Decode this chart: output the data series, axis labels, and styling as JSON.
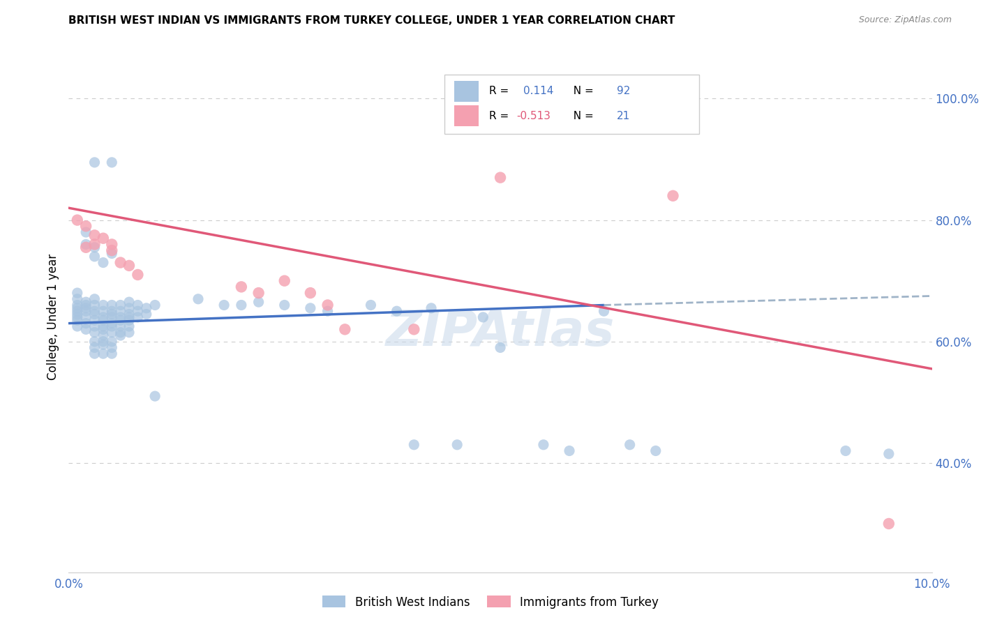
{
  "title": "BRITISH WEST INDIAN VS IMMIGRANTS FROM TURKEY COLLEGE, UNDER 1 YEAR CORRELATION CHART",
  "source": "Source: ZipAtlas.com",
  "ylabel": "College, Under 1 year",
  "xlim": [
    0.0,
    0.1
  ],
  "ylim": [
    0.22,
    1.06
  ],
  "blue_color": "#a8c4e0",
  "pink_color": "#f4a0b0",
  "blue_line_color": "#4472c4",
  "pink_line_color": "#e05878",
  "dashed_line_color": "#a0b4c8",
  "grid_color": "#cccccc",
  "right_tick_color": "#4472c4",
  "x_tick_color": "#4472c4",
  "blue_scatter": [
    [
      0.001,
      0.66
    ],
    [
      0.001,
      0.65
    ],
    [
      0.001,
      0.64
    ],
    [
      0.001,
      0.67
    ],
    [
      0.001,
      0.635
    ],
    [
      0.001,
      0.655
    ],
    [
      0.001,
      0.625
    ],
    [
      0.001,
      0.68
    ],
    [
      0.001,
      0.645
    ],
    [
      0.002,
      0.66
    ],
    [
      0.002,
      0.64
    ],
    [
      0.002,
      0.655
    ],
    [
      0.002,
      0.63
    ],
    [
      0.002,
      0.62
    ],
    [
      0.002,
      0.665
    ],
    [
      0.002,
      0.65
    ],
    [
      0.003,
      0.67
    ],
    [
      0.003,
      0.66
    ],
    [
      0.003,
      0.65
    ],
    [
      0.003,
      0.645
    ],
    [
      0.003,
      0.635
    ],
    [
      0.003,
      0.625
    ],
    [
      0.003,
      0.615
    ],
    [
      0.003,
      0.6
    ],
    [
      0.003,
      0.59
    ],
    [
      0.003,
      0.58
    ],
    [
      0.004,
      0.66
    ],
    [
      0.004,
      0.65
    ],
    [
      0.004,
      0.64
    ],
    [
      0.004,
      0.635
    ],
    [
      0.004,
      0.625
    ],
    [
      0.004,
      0.62
    ],
    [
      0.004,
      0.61
    ],
    [
      0.004,
      0.6
    ],
    [
      0.004,
      0.595
    ],
    [
      0.004,
      0.58
    ],
    [
      0.005,
      0.66
    ],
    [
      0.005,
      0.65
    ],
    [
      0.005,
      0.645
    ],
    [
      0.005,
      0.64
    ],
    [
      0.005,
      0.63
    ],
    [
      0.005,
      0.625
    ],
    [
      0.005,
      0.615
    ],
    [
      0.005,
      0.6
    ],
    [
      0.005,
      0.59
    ],
    [
      0.005,
      0.58
    ],
    [
      0.006,
      0.66
    ],
    [
      0.006,
      0.65
    ],
    [
      0.006,
      0.64
    ],
    [
      0.006,
      0.635
    ],
    [
      0.006,
      0.625
    ],
    [
      0.006,
      0.615
    ],
    [
      0.006,
      0.61
    ],
    [
      0.007,
      0.665
    ],
    [
      0.007,
      0.655
    ],
    [
      0.007,
      0.645
    ],
    [
      0.007,
      0.64
    ],
    [
      0.007,
      0.635
    ],
    [
      0.007,
      0.625
    ],
    [
      0.007,
      0.615
    ],
    [
      0.008,
      0.66
    ],
    [
      0.008,
      0.65
    ],
    [
      0.008,
      0.64
    ],
    [
      0.009,
      0.655
    ],
    [
      0.009,
      0.645
    ],
    [
      0.01,
      0.66
    ],
    [
      0.002,
      0.76
    ],
    [
      0.003,
      0.755
    ],
    [
      0.003,
      0.74
    ],
    [
      0.004,
      0.73
    ],
    [
      0.005,
      0.745
    ],
    [
      0.005,
      0.895
    ],
    [
      0.003,
      0.895
    ],
    [
      0.002,
      0.78
    ],
    [
      0.015,
      0.67
    ],
    [
      0.018,
      0.66
    ],
    [
      0.02,
      0.66
    ],
    [
      0.022,
      0.665
    ],
    [
      0.025,
      0.66
    ],
    [
      0.028,
      0.655
    ],
    [
      0.03,
      0.65
    ],
    [
      0.035,
      0.66
    ],
    [
      0.038,
      0.65
    ],
    [
      0.042,
      0.655
    ],
    [
      0.045,
      0.43
    ],
    [
      0.048,
      0.64
    ],
    [
      0.05,
      0.59
    ],
    [
      0.055,
      0.43
    ],
    [
      0.058,
      0.42
    ],
    [
      0.062,
      0.65
    ],
    [
      0.065,
      0.43
    ],
    [
      0.068,
      0.42
    ],
    [
      0.04,
      0.43
    ],
    [
      0.09,
      0.42
    ],
    [
      0.095,
      0.415
    ],
    [
      0.01,
      0.51
    ]
  ],
  "pink_scatter": [
    [
      0.001,
      0.8
    ],
    [
      0.002,
      0.79
    ],
    [
      0.002,
      0.755
    ],
    [
      0.003,
      0.775
    ],
    [
      0.003,
      0.76
    ],
    [
      0.004,
      0.77
    ],
    [
      0.005,
      0.76
    ],
    [
      0.005,
      0.75
    ],
    [
      0.006,
      0.73
    ],
    [
      0.007,
      0.725
    ],
    [
      0.008,
      0.71
    ],
    [
      0.02,
      0.69
    ],
    [
      0.022,
      0.68
    ],
    [
      0.025,
      0.7
    ],
    [
      0.028,
      0.68
    ],
    [
      0.03,
      0.66
    ],
    [
      0.032,
      0.62
    ],
    [
      0.04,
      0.62
    ],
    [
      0.05,
      0.87
    ],
    [
      0.07,
      0.84
    ],
    [
      0.095,
      0.3
    ]
  ],
  "blue_line_x": [
    0.0,
    0.062
  ],
  "blue_line_y": [
    0.63,
    0.66
  ],
  "dashed_line_x": [
    0.062,
    0.1
  ],
  "dashed_line_y": [
    0.66,
    0.675
  ],
  "pink_line_x": [
    0.0,
    0.1
  ],
  "pink_line_y": [
    0.82,
    0.555
  ]
}
